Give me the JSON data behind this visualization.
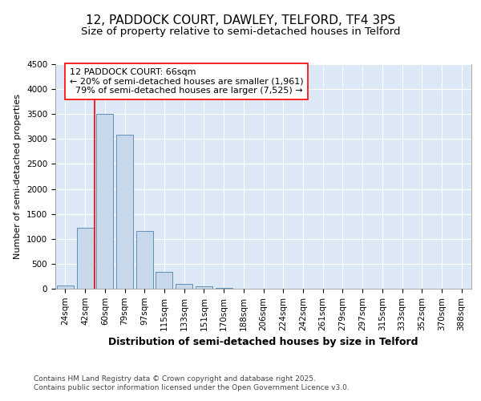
{
  "title": "12, PADDOCK COURT, DAWLEY, TELFORD, TF4 3PS",
  "subtitle": "Size of property relative to semi-detached houses in Telford",
  "xlabel": "Distribution of semi-detached houses by size in Telford",
  "ylabel": "Number of semi-detached properties",
  "categories": [
    "24sqm",
    "42sqm",
    "60sqm",
    "79sqm",
    "97sqm",
    "115sqm",
    "133sqm",
    "151sqm",
    "170sqm",
    "188sqm",
    "206sqm",
    "224sqm",
    "242sqm",
    "261sqm",
    "279sqm",
    "297sqm",
    "315sqm",
    "333sqm",
    "352sqm",
    "370sqm",
    "388sqm"
  ],
  "values": [
    70,
    1220,
    3510,
    3090,
    1160,
    340,
    100,
    45,
    10,
    5,
    3,
    2,
    1,
    1,
    0,
    0,
    0,
    0,
    0,
    0,
    0
  ],
  "bar_color": "#c8d8ea",
  "bar_edge_color": "#6090b8",
  "vline_color": "red",
  "vline_pos": 1.5,
  "annotation_text": "12 PADDOCK COURT: 66sqm\n← 20% of semi-detached houses are smaller (1,961)\n  79% of semi-detached houses are larger (7,525) →",
  "annotation_box_color": "white",
  "annotation_box_edge": "red",
  "ylim": [
    0,
    4500
  ],
  "yticks": [
    0,
    500,
    1000,
    1500,
    2000,
    2500,
    3000,
    3500,
    4000,
    4500
  ],
  "background_color": "white",
  "plot_bg_color": "#dce8f5",
  "grid_color": "white",
  "footer": "Contains HM Land Registry data © Crown copyright and database right 2025.\nContains public sector information licensed under the Open Government Licence v3.0.",
  "title_fontsize": 11,
  "subtitle_fontsize": 9.5,
  "xlabel_fontsize": 9,
  "ylabel_fontsize": 8,
  "tick_fontsize": 7.5,
  "annot_fontsize": 8,
  "footer_fontsize": 6.5
}
